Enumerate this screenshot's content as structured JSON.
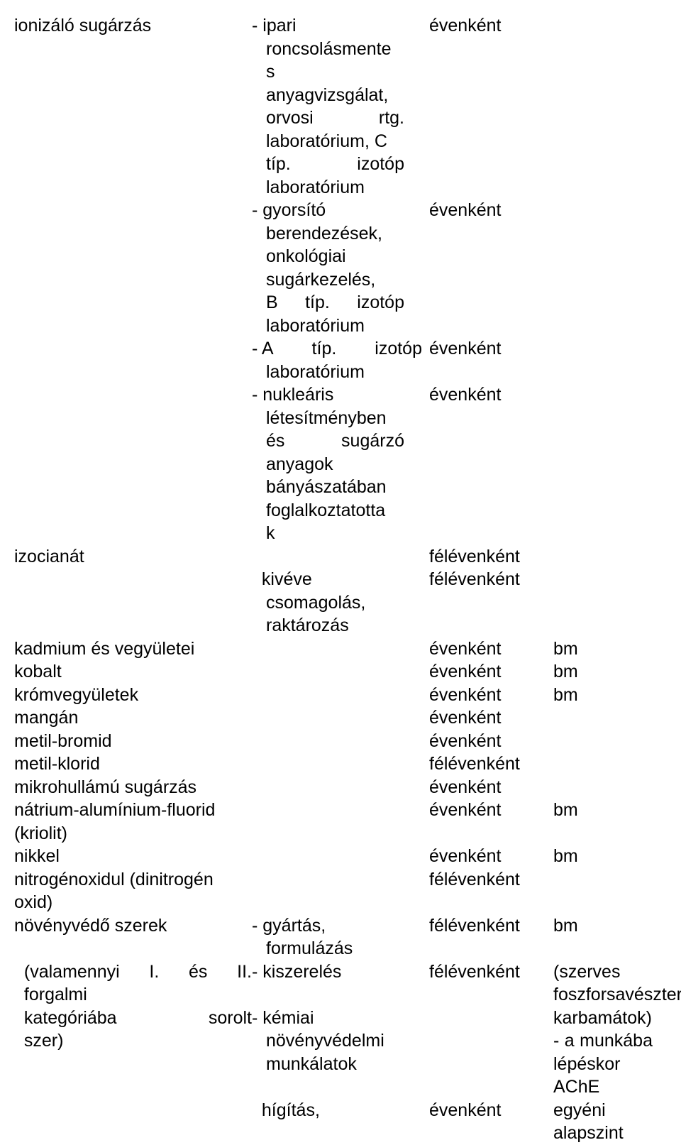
{
  "rows": {
    "r1": {
      "c1": "ionizáló sugárzás",
      "c2": "- ipari",
      "c3": "évenként"
    },
    "r1s1": "roncsolásmente",
    "r1s2": "s",
    "r1s3": "anyagvizsgálat,",
    "r1s4a": "orvosi",
    "r1s4b": "rtg.",
    "r1s5": "laboratórium, C",
    "r1s6a": "típ.",
    "r1s6b": "izotóp",
    "r1s7": "laboratórium",
    "r2": {
      "c2a": "- gyorsító",
      "c3": "évenként"
    },
    "r2s1": "berendezések,",
    "r2s2": "onkológiai",
    "r2s3": "sugárkezelés,",
    "r2s4a": "B",
    "r2s4b": "típ.",
    "r2s4c": "izotóp",
    "r2s5": "laboratórium",
    "r3": {
      "c2a": "- A",
      "c2b": "típ.",
      "c2c": "izotóp",
      "c3": "évenként"
    },
    "r3s1": "laboratórium",
    "r4": {
      "c2": "- nukleáris",
      "c3": "évenként"
    },
    "r4s1": "létesítményben",
    "r4s2a": "és",
    "r4s2b": "sugárzó",
    "r4s3": "anyagok",
    "r4s4": "bányászatában",
    "r4s5": "foglalkoztatotta",
    "r4s6": "k",
    "r5": {
      "c1": "izocianát",
      "c3": "félévenként"
    },
    "r5a": {
      "c2": "  kivéve",
      "c3": "félévenként"
    },
    "r5s1": "csomagolás,",
    "r5s2": "raktározás",
    "r6": {
      "c1": "kadmium és vegyületei",
      "c3": "évenként",
      "c4": "bm"
    },
    "r7": {
      "c1": "kobalt",
      "c3": "évenként",
      "c4": "bm"
    },
    "r8": {
      "c1": "krómvegyületek",
      "c3": "évenként",
      "c4": "bm"
    },
    "r9": {
      "c1": "mangán",
      "c3": "évenként"
    },
    "r10": {
      "c1": "metil-bromid",
      "c3": "évenként"
    },
    "r11": {
      "c1": "metil-klorid",
      "c3": "félévenként"
    },
    "r12": {
      "c1": "mikrohullámú sugárzás",
      "c3": "évenként"
    },
    "r13": {
      "c1": "nátrium-alumínium-fluorid",
      "c3": "évenként",
      "c4": "bm"
    },
    "r13s1": "(kriolit)",
    "r14": {
      "c1": "nikkel",
      "c3": "évenként",
      "c4": "bm"
    },
    "r15": {
      "c1": "nitrogénoxidul (dinitrogén",
      "c3": "félévenként"
    },
    "r15s1": "oxid)",
    "r16": {
      "c1": "növényvédő szerek",
      "c2": "- gyártás,",
      "c3": "félévenként",
      "c4": "bm"
    },
    "r16s1": "formulázás",
    "r17": {
      "c1a": "  (valamennyi",
      "c1b": "I.",
      "c1c": "és",
      "c1d": "II.",
      "c2": "- kiszerelés",
      "c3": "félévenként",
      "c4": "(szerves"
    },
    "r18": {
      "c1": "  forgalmi",
      "c4": "foszforsavészterek,"
    },
    "r19": {
      "c1a": "  kategóriába",
      "c1b": "sorolt",
      "c2": "- kémiai",
      "c4": "karbamátok)"
    },
    "r20": {
      "c1": "  szer)",
      "c2": "növényvédelmi",
      "c4a": "-",
      "c4b": "a",
      "c4c": "munkába"
    },
    "r21": {
      "c2": "munkálatok",
      "c4": "lépéskor AChE"
    },
    "r22": {
      "c2": "  hígítás,",
      "c3": "évenként",
      "c4": "egyéni alapszint"
    }
  }
}
